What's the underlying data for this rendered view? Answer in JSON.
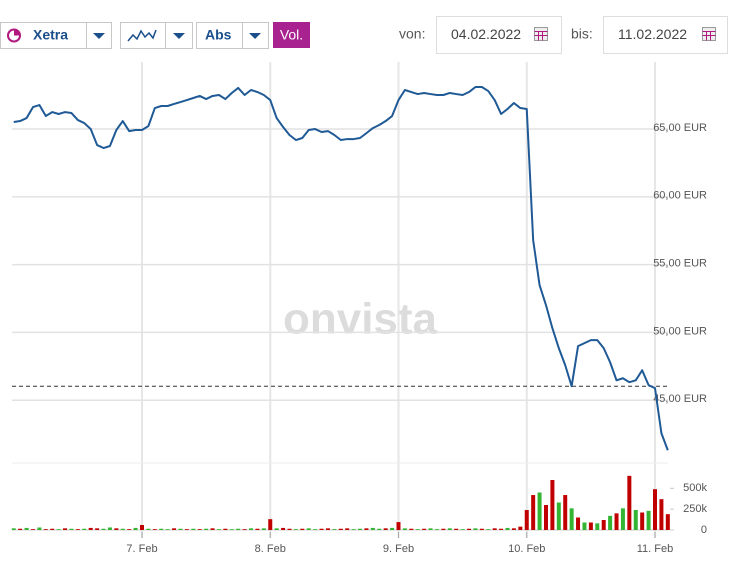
{
  "toolbar": {
    "exchange": "Xetra",
    "mode": "Abs",
    "volume_button": "Vol.",
    "from_label": "von:",
    "from_date": "04.02.2022",
    "to_label": "bis:",
    "to_date": "11.02.2022"
  },
  "chart_data": {
    "type": "line",
    "watermark": "onvista",
    "categories": [
      null,
      null,
      null,
      null,
      null,
      null,
      null,
      null,
      null,
      null,
      null,
      null,
      null,
      null,
      null,
      null,
      null,
      null,
      null,
      null,
      "7. Feb",
      null,
      null,
      null,
      null,
      null,
      null,
      null,
      null,
      null,
      null,
      null,
      null,
      null,
      null,
      null,
      null,
      null,
      null,
      null,
      "8. Feb",
      null,
      null,
      null,
      null,
      null,
      null,
      null,
      null,
      null,
      null,
      null,
      null,
      null,
      null,
      null,
      null,
      null,
      null,
      null,
      "9. Feb",
      null,
      null,
      null,
      null,
      null,
      null,
      null,
      null,
      null,
      null,
      null,
      null,
      null,
      null,
      null,
      null,
      null,
      null,
      null,
      "10. Feb",
      null,
      null,
      null,
      null,
      null,
      null,
      null,
      null,
      null,
      null,
      null,
      null,
      null,
      null,
      null,
      null,
      null,
      null,
      null,
      "11. Feb",
      null,
      null
    ],
    "series": [
      {
        "color": "#1f5a96",
        "values": [
          65.52,
          65.59,
          65.81,
          66.62,
          66.77,
          65.96,
          66.25,
          66.11,
          66.25,
          66.18,
          65.66,
          65.44,
          65.0,
          63.82,
          63.6,
          63.75,
          64.93,
          65.59,
          64.85,
          64.93,
          64.93,
          65.22,
          66.55,
          66.7,
          66.7,
          66.85,
          66.99,
          67.14,
          67.29,
          67.44,
          67.21,
          67.44,
          67.51,
          67.21,
          67.66,
          68.03,
          67.51,
          67.88,
          67.73,
          67.51,
          67.14,
          65.81,
          65.15,
          64.56,
          64.19,
          64.34,
          64.93,
          65.0,
          64.78,
          64.85,
          64.56,
          64.19,
          64.26,
          64.26,
          64.34,
          64.7,
          65.07,
          65.3,
          65.59,
          65.96,
          67.14,
          67.88,
          67.73,
          67.58,
          67.66,
          67.58,
          67.51,
          67.51,
          67.66,
          67.58,
          67.51,
          67.73,
          68.1,
          68.1,
          67.8,
          67.14,
          66.11,
          66.48,
          66.92,
          66.55,
          66.48,
          56.81,
          53.49,
          52.01,
          50.31,
          48.84,
          47.58,
          46.03,
          48.99,
          49.21,
          49.43,
          49.43,
          48.84,
          47.8,
          46.47,
          46.62,
          46.33,
          46.47,
          47.21,
          46.11,
          45.89,
          42.56,
          41.31
        ]
      }
    ],
    "ylim": [
      40,
      70
    ],
    "yticks": [
      {
        "value": 45,
        "label": "45,00 EUR"
      },
      {
        "value": 50,
        "label": "50,00 EUR"
      },
      {
        "value": 55,
        "label": "55,00 EUR"
      },
      {
        "value": 60,
        "label": "60,00 EUR"
      },
      {
        "value": 65,
        "label": "65,00 EUR"
      }
    ],
    "grid": true,
    "reference_line": 46.03,
    "volume": {
      "type": "bar",
      "values": [
        20000,
        15000,
        25000,
        10000,
        30000,
        10000,
        15000,
        10000,
        20000,
        15000,
        10000,
        15000,
        25000,
        20000,
        15000,
        30000,
        20000,
        15000,
        10000,
        25000,
        60000,
        15000,
        10000,
        15000,
        10000,
        20000,
        15000,
        10000,
        15000,
        10000,
        15000,
        20000,
        10000,
        15000,
        10000,
        15000,
        10000,
        20000,
        15000,
        20000,
        130000,
        20000,
        25000,
        15000,
        10000,
        15000,
        20000,
        10000,
        15000,
        20000,
        10000,
        15000,
        20000,
        10000,
        15000,
        20000,
        25000,
        15000,
        20000,
        25000,
        95000,
        20000,
        15000,
        10000,
        15000,
        20000,
        10000,
        15000,
        20000,
        15000,
        10000,
        15000,
        20000,
        15000,
        10000,
        20000,
        15000,
        25000,
        20000,
        40000,
        240000,
        420000,
        450000,
        300000,
        600000,
        330000,
        420000,
        260000,
        150000,
        90000,
        90000,
        80000,
        120000,
        170000,
        200000,
        260000,
        650000,
        240000,
        210000,
        230000,
        490000,
        370000,
        190000
      ],
      "colors": [
        "#33b533",
        "#c00000",
        "#33b533",
        "#c00000",
        "#33b533",
        "#c00000",
        "#c00000",
        "#33b533",
        "#c00000",
        "#33b533",
        "#c00000",
        "#33b533",
        "#c00000",
        "#c00000",
        "#33b533",
        "#33b533",
        "#c00000",
        "#33b533",
        "#c00000",
        "#33b533",
        "#c00000",
        "#33b533",
        "#c00000",
        "#33b533",
        "#33b533",
        "#c00000",
        "#33b533",
        "#c00000",
        "#33b533",
        "#c00000",
        "#33b533",
        "#c00000",
        "#33b533",
        "#c00000",
        "#33b533",
        "#33b533",
        "#c00000",
        "#33b533",
        "#c00000",
        "#33b533",
        "#c00000",
        "#33b533",
        "#c00000",
        "#c00000",
        "#33b533",
        "#c00000",
        "#33b533",
        "#33b533",
        "#c00000",
        "#c00000",
        "#33b533",
        "#c00000",
        "#c00000",
        "#33b533",
        "#33b533",
        "#c00000",
        "#33b533",
        "#33b533",
        "#c00000",
        "#33b533",
        "#c00000",
        "#33b533",
        "#c00000",
        "#33b533",
        "#c00000",
        "#33b533",
        "#33b533",
        "#c00000",
        "#33b533",
        "#c00000",
        "#33b533",
        "#c00000",
        "#33b533",
        "#c00000",
        "#33b533",
        "#c00000",
        "#c00000",
        "#33b533",
        "#c00000",
        "#c00000",
        "#c00000",
        "#c00000",
        "#33b533",
        "#c00000",
        "#c00000",
        "#33b533",
        "#c00000",
        "#33b533",
        "#c00000",
        "#33b533",
        "#c00000",
        "#33b533",
        "#c00000",
        "#33b533",
        "#c00000",
        "#33b533",
        "#c00000",
        "#33b533",
        "#c00000",
        "#33b533",
        "#c00000",
        "#c00000",
        "#c00000"
      ],
      "ylim": [
        0,
        780000
      ],
      "yticks": [
        0,
        {
          "value": 250000,
          "label": "250k"
        },
        {
          "value": 500000,
          "label": "500k"
        }
      ]
    }
  }
}
